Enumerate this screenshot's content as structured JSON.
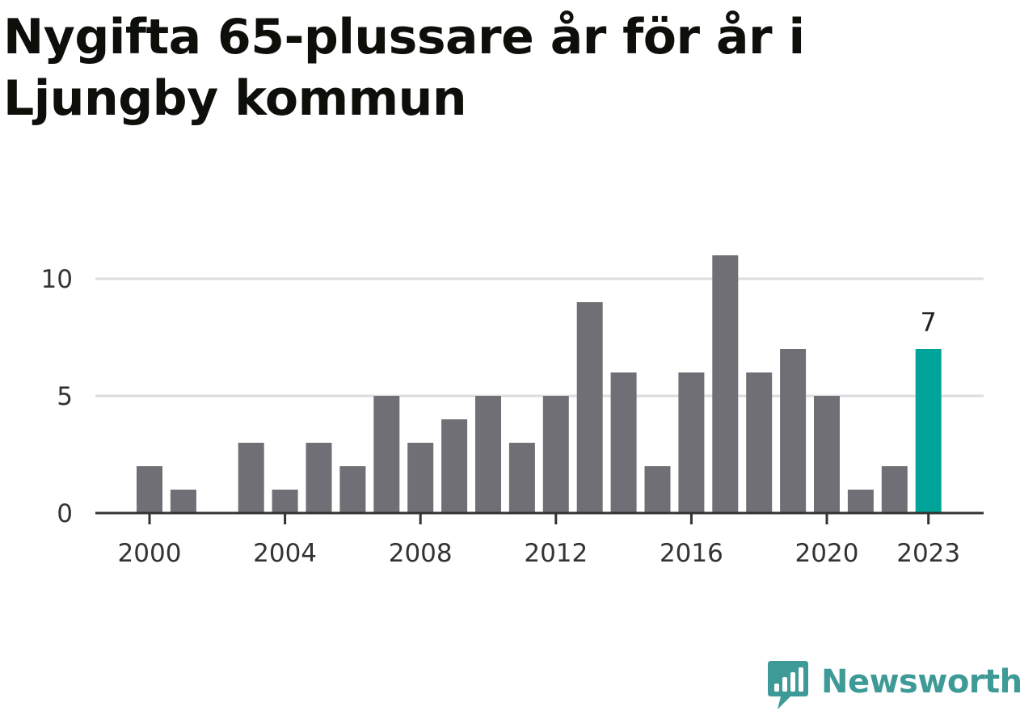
{
  "brand": {
    "name": "Newsworthy",
    "color": "#3d9a96",
    "icon": "bar-chart-speech-bubble-icon"
  },
  "colors": {
    "bar": "#706f75",
    "highlight": "#01a499",
    "grid": "#dddddd",
    "axis": "#333333"
  },
  "chart_data": {
    "type": "bar",
    "title": "Nygifta 65-plussare år för år i Ljungby kommun",
    "xlabel": "",
    "ylabel": "",
    "categories": [
      2000,
      2001,
      2002,
      2003,
      2004,
      2005,
      2006,
      2007,
      2008,
      2009,
      2010,
      2011,
      2012,
      2013,
      2014,
      2015,
      2016,
      2017,
      2018,
      2019,
      2020,
      2021,
      2022,
      2023
    ],
    "values": [
      2,
      1,
      0,
      3,
      1,
      3,
      2,
      5,
      3,
      4,
      5,
      3,
      5,
      9,
      6,
      2,
      6,
      11,
      6,
      7,
      5,
      1,
      2,
      7
    ],
    "x_ticks": [
      2000,
      2004,
      2008,
      2012,
      2016,
      2020,
      2023
    ],
    "y_ticks": [
      0,
      5,
      10
    ],
    "ylim": [
      0,
      11
    ],
    "grid": true,
    "highlight": {
      "category": 2023,
      "label": "7"
    }
  }
}
